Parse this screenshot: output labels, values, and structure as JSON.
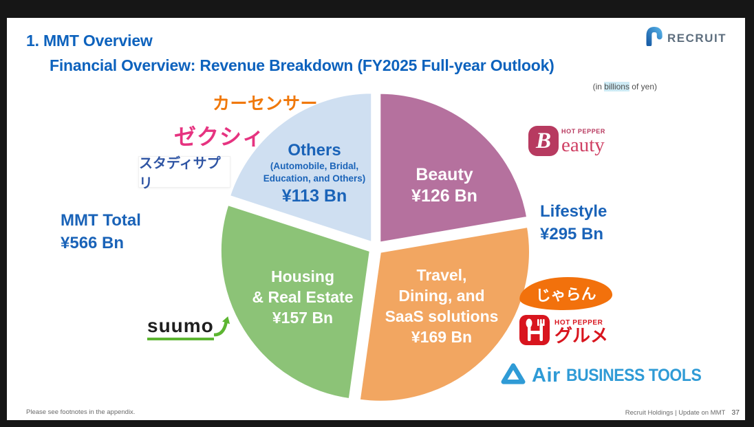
{
  "header": {
    "section_title": "1. MMT Overview",
    "slide_title": "Financial Overview: Revenue Breakdown (FY2025 Full-year Outlook)",
    "unit_note": {
      "prefix": "(in ",
      "highlight": "billions",
      "suffix": " of yen)"
    },
    "recruit_logo_text": "RECRUIT"
  },
  "chart_data": {
    "type": "pie",
    "title": "Financial Overview: Revenue Breakdown (FY2025 Full-year Outlook)",
    "units": "billions of yen",
    "rotation_start_deg": 0,
    "total": {
      "label": "MMT Total",
      "value": 566,
      "value_label": "¥566 Bn"
    },
    "slices": [
      {
        "name": "Beauty",
        "value": 126,
        "value_label": "¥126 Bn",
        "color": "#b5719e",
        "label_lines": [
          "Beauty"
        ]
      },
      {
        "name": "Travel, Dining, and SaaS solutions",
        "value": 169,
        "value_label": "¥169 Bn",
        "color": "#f2a661",
        "label_lines": [
          "Travel,",
          "Dining, and",
          "SaaS solutions"
        ]
      },
      {
        "name": "Housing & Real Estate",
        "value": 157,
        "value_label": "¥157 Bn",
        "color": "#8cc377",
        "label_lines": [
          "Housing",
          "& Real Estate"
        ]
      },
      {
        "name": "Others",
        "value": 113,
        "value_label": "¥113 Bn",
        "color": "#cfdff1",
        "label_lines": [
          "Others"
        ],
        "sub_lines": [
          "(Automobile, Bridal,",
          "Education, and Others)"
        ]
      }
    ],
    "groups": [
      {
        "name": "Lifestyle",
        "value": 295,
        "value_label": "¥295 Bn",
        "members": [
          "Beauty",
          "Travel, Dining, and SaaS solutions"
        ]
      }
    ]
  },
  "logos": {
    "carsensor": "カーセンサー",
    "zexy": "ゼクシィ",
    "study_sapuri": "スタディサプリ",
    "suumo": "suumo",
    "hot_pepper_beauty": {
      "brand": "HOT PEPPER",
      "initial": "B",
      "rest": "eauty"
    },
    "jalan": "じゃらん",
    "hot_pepper_gourmet": {
      "brand": "HOT PEPPER",
      "word": "グルメ"
    },
    "air_business_tools": {
      "word": "Air",
      "suffix": "BUSINESS TOOLS"
    }
  },
  "footer": {
    "left": "Please see footnotes in the appendix.",
    "right": "Recruit Holdings | Update on MMT",
    "page_number": "37"
  }
}
